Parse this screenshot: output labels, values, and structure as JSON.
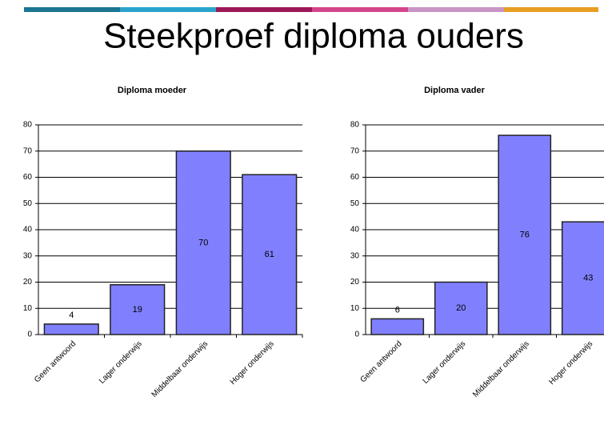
{
  "slide": {
    "title": "Steekproef diploma ouders"
  },
  "chart_data": [
    {
      "type": "bar",
      "title": "Diploma moeder",
      "categories": [
        "Geen antwoord",
        "Lager onderwijs",
        "Middelbaar onderwijs",
        "Hoger onderwijs"
      ],
      "values": [
        4,
        19,
        70,
        61
      ],
      "color": "#8080ff",
      "ylim": [
        0,
        80
      ],
      "yticks": [
        0,
        10,
        20,
        30,
        40,
        50,
        60,
        70,
        80
      ],
      "grid": true
    },
    {
      "type": "bar",
      "title": "Diploma vader",
      "categories": [
        "Geen antwoord",
        "Lager onderwijs",
        "Middelbaar onderwijs",
        "Hoger onderwijs"
      ],
      "values": [
        6,
        20,
        76,
        43
      ],
      "color": "#8080ff",
      "ylim": [
        0,
        80
      ],
      "yticks": [
        0,
        10,
        20,
        30,
        40,
        50,
        60,
        70,
        80
      ],
      "grid": true
    }
  ]
}
